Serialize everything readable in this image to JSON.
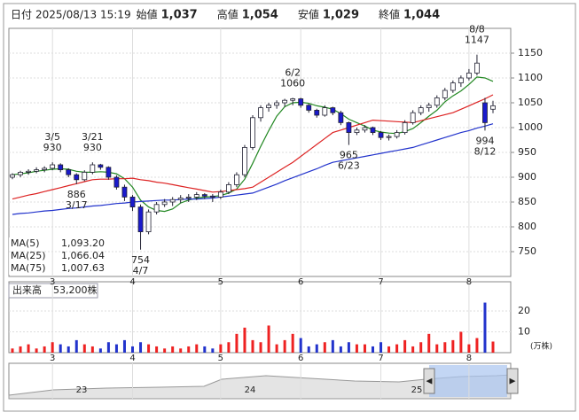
{
  "header": {
    "items": [
      {
        "label": "日付",
        "value": "2025/08/13 15:19",
        "color": "#222222"
      },
      {
        "label": "始値",
        "value": "1,037",
        "color": "#222222"
      },
      {
        "label": "高値",
        "value": "1,054",
        "color": "#dd1111"
      },
      {
        "label": "安値",
        "value": "1,029",
        "color": "#118811"
      },
      {
        "label": "終値",
        "value": "1,044",
        "color": "#222222"
      }
    ]
  },
  "chart_data": {
    "type": "candlestick",
    "categories": [
      null,
      null,
      null,
      null,
      null,
      "3",
      null,
      null,
      null,
      null,
      null,
      null,
      null,
      null,
      null,
      "4",
      null,
      null,
      null,
      null,
      null,
      null,
      null,
      null,
      null,
      null,
      "5",
      null,
      null,
      null,
      null,
      null,
      null,
      null,
      null,
      null,
      "6",
      null,
      null,
      null,
      null,
      null,
      null,
      null,
      null,
      null,
      "7",
      null,
      null,
      null,
      null,
      null,
      null,
      null,
      null,
      null,
      null,
      "8",
      null,
      null,
      null
    ],
    "ohlc": [
      [
        900,
        908,
        896,
        905
      ],
      [
        905,
        913,
        900,
        910
      ],
      [
        910,
        916,
        905,
        912
      ],
      [
        912,
        920,
        908,
        915
      ],
      [
        915,
        922,
        910,
        918
      ],
      [
        918,
        930,
        914,
        925
      ],
      [
        925,
        928,
        910,
        915
      ],
      [
        915,
        918,
        900,
        905
      ],
      [
        905,
        908,
        886,
        895
      ],
      [
        895,
        914,
        892,
        910
      ],
      [
        910,
        930,
        906,
        925
      ],
      [
        925,
        927,
        915,
        920
      ],
      [
        920,
        922,
        895,
        900
      ],
      [
        900,
        904,
        875,
        880
      ],
      [
        880,
        885,
        852,
        860
      ],
      [
        860,
        864,
        832,
        840
      ],
      [
        840,
        845,
        754,
        790
      ],
      [
        790,
        835,
        785,
        830
      ],
      [
        830,
        850,
        825,
        845
      ],
      [
        845,
        856,
        840,
        850
      ],
      [
        850,
        860,
        842,
        855
      ],
      [
        855,
        864,
        848,
        858
      ],
      [
        858,
        866,
        850,
        860
      ],
      [
        860,
        870,
        854,
        865
      ],
      [
        865,
        868,
        856,
        862
      ],
      [
        862,
        866,
        850,
        860
      ],
      [
        860,
        875,
        856,
        870
      ],
      [
        870,
        890,
        866,
        885
      ],
      [
        885,
        910,
        880,
        905
      ],
      [
        905,
        965,
        900,
        960
      ],
      [
        960,
        1025,
        955,
        1020
      ],
      [
        1020,
        1045,
        1012,
        1040
      ],
      [
        1040,
        1050,
        1032,
        1045
      ],
      [
        1045,
        1055,
        1038,
        1050
      ],
      [
        1050,
        1058,
        1042,
        1055
      ],
      [
        1055,
        1060,
        1045,
        1058
      ],
      [
        1058,
        1060,
        1040,
        1045
      ],
      [
        1045,
        1048,
        1030,
        1035
      ],
      [
        1035,
        1038,
        1020,
        1025
      ],
      [
        1025,
        1045,
        1022,
        1040
      ],
      [
        1040,
        1042,
        1025,
        1030
      ],
      [
        1030,
        1034,
        1005,
        1010
      ],
      [
        1010,
        1012,
        965,
        990
      ],
      [
        990,
        1000,
        985,
        995
      ],
      [
        995,
        1005,
        990,
        1000
      ],
      [
        1000,
        1002,
        985,
        990
      ],
      [
        990,
        993,
        975,
        980
      ],
      [
        980,
        986,
        974,
        982
      ],
      [
        982,
        995,
        978,
        990
      ],
      [
        990,
        1015,
        986,
        1010
      ],
      [
        1010,
        1035,
        1006,
        1030
      ],
      [
        1030,
        1045,
        1025,
        1040
      ],
      [
        1040,
        1050,
        1032,
        1045
      ],
      [
        1045,
        1065,
        1040,
        1060
      ],
      [
        1060,
        1080,
        1055,
        1075
      ],
      [
        1075,
        1095,
        1070,
        1090
      ],
      [
        1090,
        1105,
        1082,
        1100
      ],
      [
        1100,
        1118,
        1095,
        1110
      ],
      [
        1110,
        1147,
        1105,
        1130
      ],
      [
        1050,
        1060,
        994,
        1010
      ],
      [
        1037,
        1054,
        1029,
        1044
      ]
    ],
    "up_color": "#ffffff",
    "down_color": "#1a1acc",
    "series": [
      {
        "name": "MA(5)",
        "color": "#228822",
        "legend_value": "1,093.20",
        "values": [
          905,
          907,
          909,
          912,
          914,
          916,
          917,
          916,
          912,
          910,
          910,
          911,
          910,
          907,
          897,
          880,
          854,
          840,
          833,
          831,
          836,
          848,
          854,
          858,
          860,
          861,
          863,
          868,
          876,
          896,
          928,
          962,
          994,
          1023,
          1042,
          1050,
          1051,
          1049,
          1044,
          1041,
          1037,
          1028,
          1017,
          1010,
          1003,
          995,
          991,
          989,
          988,
          992,
          998,
          1010,
          1023,
          1035,
          1052,
          1064,
          1074,
          1087,
          1102,
          1100,
          1093.2
        ]
      },
      {
        "name": "MA(25)",
        "color": "#dd2222",
        "legend_value": "1,066.04",
        "values": [
          856,
          860,
          864,
          867,
          871,
          875,
          879,
          883,
          887,
          891,
          895,
          896,
          896,
          897,
          897,
          898,
          895,
          893,
          890,
          888,
          885,
          882,
          879,
          876,
          873,
          870,
          871,
          873,
          875,
          877,
          880,
          890,
          900,
          910,
          920,
          930,
          942,
          954,
          966,
          978,
          990,
          995,
          1000,
          1005,
          1010,
          1015,
          1014,
          1013,
          1012,
          1011,
          1010,
          1014,
          1018,
          1022,
          1026,
          1030,
          1037,
          1044,
          1051,
          1058,
          1066.04
        ]
      },
      {
        "name": "MA(75)",
        "color": "#2233cc",
        "legend_value": "1,007.63",
        "values": [
          825,
          827,
          828,
          830,
          832,
          833,
          835,
          837,
          838,
          840,
          842,
          843,
          845,
          847,
          848,
          850,
          851,
          852,
          853,
          854,
          854,
          855,
          856,
          856,
          857,
          858,
          860,
          862,
          864,
          866,
          868,
          874,
          880,
          886,
          893,
          899,
          905,
          911,
          917,
          924,
          930,
          933,
          936,
          939,
          942,
          945,
          948,
          951,
          954,
          957,
          960,
          965,
          970,
          975,
          980,
          985,
          990,
          994,
          999,
          1003,
          1007.63
        ]
      }
    ],
    "ylim": [
      700,
      1200
    ],
    "yticks": [
      750,
      800,
      850,
      900,
      950,
      1000,
      1050,
      1100,
      1150
    ],
    "grid": true,
    "annotations": [
      {
        "index": 5,
        "side": "above",
        "lines": [
          "3/5",
          "930"
        ]
      },
      {
        "index": 10,
        "side": "above",
        "lines": [
          "3/21",
          "930"
        ]
      },
      {
        "index": 8,
        "side": "below",
        "lines": [
          "886",
          "3/17"
        ]
      },
      {
        "index": 16,
        "side": "below",
        "lines": [
          "754",
          "4/7"
        ]
      },
      {
        "index": 35,
        "side": "above",
        "lines": [
          "6/2",
          "1060"
        ]
      },
      {
        "index": 42,
        "side": "below",
        "lines": [
          "965",
          "6/23"
        ]
      },
      {
        "index": 58,
        "side": "above",
        "lines": [
          "8/8",
          "1147"
        ]
      },
      {
        "index": 59,
        "side": "below",
        "lines": [
          "994",
          "8/12"
        ]
      }
    ],
    "volume": {
      "title": "出来高",
      "value_label": "53,200株",
      "unit": "(万株)",
      "ylim": [
        0,
        34
      ],
      "yticks": [
        10,
        20
      ],
      "values": [
        2,
        3,
        4,
        2,
        3,
        5,
        4,
        3,
        6,
        4,
        3,
        2,
        5,
        4,
        6,
        3,
        5,
        4,
        3,
        2,
        3,
        2,
        3,
        4,
        3,
        2,
        4,
        5,
        9,
        12,
        6,
        5,
        13,
        4,
        6,
        9,
        7,
        3,
        4,
        5,
        6,
        3,
        5,
        4,
        4,
        3,
        5,
        3,
        4,
        6,
        3,
        5,
        9,
        4,
        5,
        6,
        10,
        4,
        7,
        24,
        5.32
      ]
    },
    "navigator": {
      "labels": [
        "23",
        "24",
        "25"
      ]
    }
  }
}
